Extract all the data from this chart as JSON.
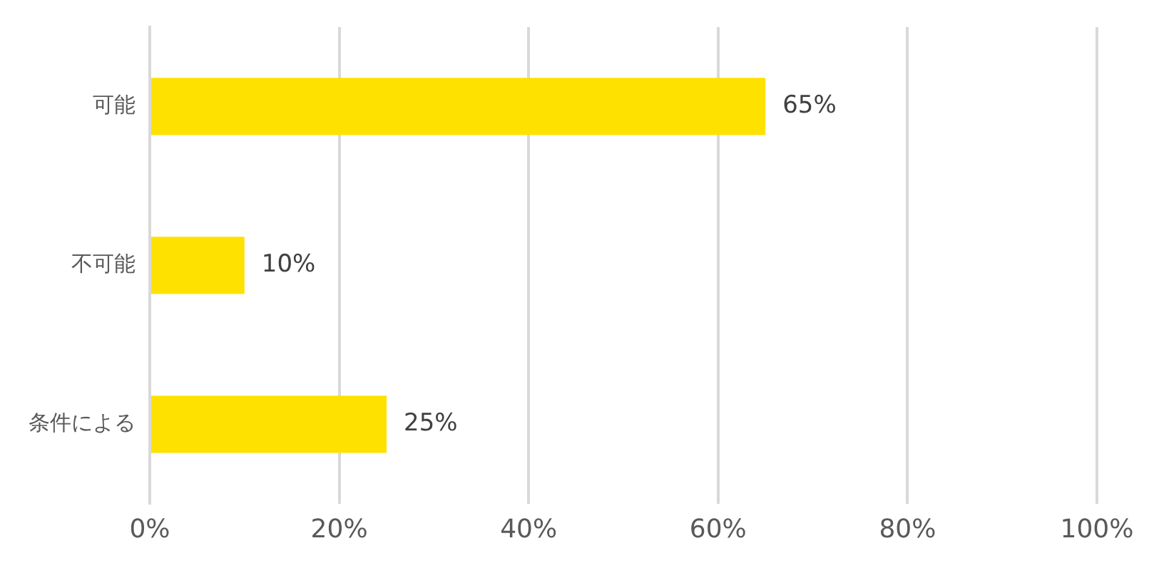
{
  "chart_data": {
    "type": "bar",
    "orientation": "horizontal",
    "categories": [
      "可能",
      "不可能",
      "条件による"
    ],
    "values": [
      65,
      10,
      25
    ],
    "color": "#ffe100",
    "value_labels": [
      "65%",
      "10%",
      "25%"
    ],
    "xlim": [
      0,
      100
    ],
    "xticks": [
      {
        "value": 0,
        "label": "0%"
      },
      {
        "value": 20,
        "label": "20%"
      },
      {
        "value": 40,
        "label": "40%"
      },
      {
        "value": 60,
        "label": "60%"
      },
      {
        "value": 80,
        "label": "80%"
      },
      {
        "value": 100,
        "label": "100%"
      }
    ],
    "grid": "x",
    "legend": false
  }
}
